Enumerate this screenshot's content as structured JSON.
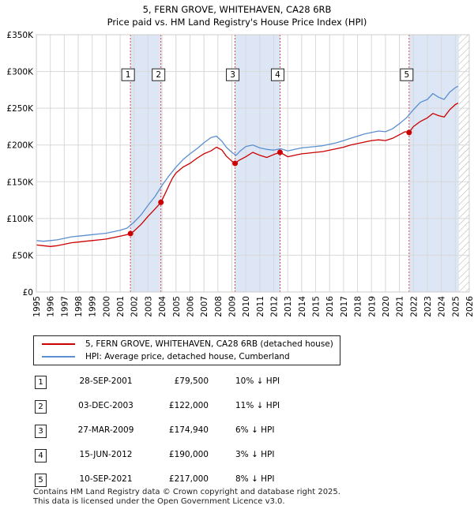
{
  "chart_data": {
    "type": "line",
    "title": "5, FERN GROVE, WHITEHAVEN, CA28 6RB",
    "subtitle": "Price paid vs. HM Land Registry's House Price Index (HPI)",
    "xlim": [
      1995,
      2026
    ],
    "ylim": [
      0,
      350000
    ],
    "x_ticks": [
      "1995",
      "1996",
      "1997",
      "1998",
      "1999",
      "2000",
      "2001",
      "2002",
      "2003",
      "2004",
      "2005",
      "2006",
      "2007",
      "2008",
      "2009",
      "2010",
      "2011",
      "2012",
      "2013",
      "2014",
      "2015",
      "2016",
      "2017",
      "2018",
      "2019",
      "2020",
      "2021",
      "2022",
      "2023",
      "2024",
      "2025",
      "2026"
    ],
    "y_ticks": [
      {
        "value": 0,
        "label": "£0"
      },
      {
        "value": 50000,
        "label": "£50K"
      },
      {
        "value": 100000,
        "label": "£100K"
      },
      {
        "value": 150000,
        "label": "£150K"
      },
      {
        "value": 200000,
        "label": "£200K"
      },
      {
        "value": 250000,
        "label": "£250K"
      },
      {
        "value": 300000,
        "label": "£300K"
      },
      {
        "value": 350000,
        "label": "£350K"
      }
    ],
    "grid": true,
    "colors": {
      "property": "#cc0000",
      "hpi": "#5b8fd0",
      "shade": "#dce6f5",
      "future_hatch": "#999999"
    },
    "shaded_ranges": [
      [
        2001.74,
        2003.92
      ],
      [
        2009.23,
        2012.45
      ],
      [
        2021.69,
        2025.25
      ]
    ],
    "future_start": 2025.25,
    "series": [
      {
        "name": "5, FERN GROVE, WHITEHAVEN, CA28 6RB (detached house)",
        "color": "#cc0000",
        "x": [
          1995.0,
          1995.5,
          1996.0,
          1996.5,
          1997.0,
          1997.5,
          1998.0,
          1998.5,
          1999.0,
          1999.5,
          2000.0,
          2000.5,
          2001.0,
          2001.5,
          2001.74,
          2002.0,
          2002.5,
          2003.0,
          2003.5,
          2003.92,
          2004.25,
          2004.5,
          2004.75,
          2005.0,
          2005.5,
          2006.0,
          2006.5,
          2007.0,
          2007.5,
          2007.9,
          2008.3,
          2008.6,
          2009.0,
          2009.23,
          2009.5,
          2010.0,
          2010.5,
          2011.0,
          2011.5,
          2012.0,
          2012.45,
          2013.0,
          2013.5,
          2014.0,
          2014.5,
          2015.0,
          2015.5,
          2016.0,
          2016.5,
          2017.0,
          2017.5,
          2018.0,
          2018.5,
          2019.0,
          2019.5,
          2020.0,
          2020.5,
          2021.0,
          2021.4,
          2021.69,
          2022.0,
          2022.5,
          2023.0,
          2023.4,
          2023.8,
          2024.2,
          2024.6,
          2025.0,
          2025.2
        ],
        "y": [
          64000,
          63000,
          62000,
          63000,
          65000,
          67000,
          68000,
          69000,
          70000,
          71000,
          72000,
          74000,
          76000,
          78000,
          79500,
          83000,
          92000,
          103000,
          113000,
          122000,
          135000,
          145000,
          155000,
          162000,
          170000,
          175000,
          182000,
          188000,
          192000,
          197000,
          193000,
          185000,
          178000,
          174940,
          179000,
          184000,
          190000,
          186000,
          183000,
          187000,
          190000,
          184000,
          186000,
          188000,
          189000,
          190000,
          191000,
          193000,
          195000,
          197000,
          200000,
          202000,
          204000,
          206000,
          207000,
          206000,
          209000,
          214000,
          218000,
          217000,
          225000,
          232000,
          237000,
          243000,
          240000,
          238000,
          248000,
          255000,
          257000
        ]
      },
      {
        "name": "HPI: Average price, detached house, Cumberland",
        "color": "#5b8fd0",
        "x": [
          1995.0,
          1995.5,
          1996.0,
          1996.5,
          1997.0,
          1997.5,
          1998.0,
          1998.5,
          1999.0,
          1999.5,
          2000.0,
          2000.5,
          2001.0,
          2001.5,
          2002.0,
          2002.5,
          2003.0,
          2003.5,
          2004.0,
          2004.5,
          2005.0,
          2005.5,
          2006.0,
          2006.5,
          2007.0,
          2007.5,
          2007.9,
          2008.3,
          2008.6,
          2009.0,
          2009.3,
          2009.6,
          2010.0,
          2010.5,
          2011.0,
          2011.5,
          2012.0,
          2012.5,
          2013.0,
          2013.5,
          2014.0,
          2014.5,
          2015.0,
          2015.5,
          2016.0,
          2016.5,
          2017.0,
          2017.5,
          2018.0,
          2018.5,
          2019.0,
          2019.5,
          2020.0,
          2020.5,
          2021.0,
          2021.5,
          2022.0,
          2022.5,
          2023.0,
          2023.4,
          2023.8,
          2024.2,
          2024.6,
          2025.0,
          2025.2
        ],
        "y": [
          70000,
          69000,
          70000,
          71000,
          73000,
          75000,
          76000,
          77000,
          78000,
          79000,
          80000,
          82000,
          84000,
          87000,
          95000,
          105000,
          118000,
          130000,
          145000,
          158000,
          170000,
          180000,
          188000,
          195000,
          203000,
          210000,
          212000,
          205000,
          197000,
          190000,
          186000,
          192000,
          198000,
          200000,
          196000,
          194000,
          193000,
          195000,
          192000,
          194000,
          196000,
          197000,
          198000,
          199000,
          201000,
          203000,
          206000,
          209000,
          212000,
          215000,
          217000,
          219000,
          218000,
          222000,
          229000,
          237000,
          248000,
          258000,
          262000,
          270000,
          265000,
          262000,
          272000,
          278000,
          280000
        ]
      }
    ],
    "markers": [
      {
        "label": "1",
        "x": 2001.74,
        "y": 79500
      },
      {
        "label": "2",
        "x": 2003.92,
        "y": 122000
      },
      {
        "label": "3",
        "x": 2009.23,
        "y": 174940
      },
      {
        "label": "4",
        "x": 2012.45,
        "y": 190000
      },
      {
        "label": "5",
        "x": 2021.69,
        "y": 217000
      }
    ],
    "marker_box_value": 295000
  },
  "legend": {
    "property_label": "5, FERN GROVE, WHITEHAVEN, CA28 6RB (detached house)",
    "hpi_label": "HPI: Average price, detached house, Cumberland"
  },
  "transactions": [
    {
      "num": "1",
      "date": "28-SEP-2001",
      "price": "£79,500",
      "hpi": "10% ↓ HPI"
    },
    {
      "num": "2",
      "date": "03-DEC-2003",
      "price": "£122,000",
      "hpi": "11% ↓ HPI"
    },
    {
      "num": "3",
      "date": "27-MAR-2009",
      "price": "£174,940",
      "hpi": "6% ↓ HPI"
    },
    {
      "num": "4",
      "date": "15-JUN-2012",
      "price": "£190,000",
      "hpi": "3% ↓ HPI"
    },
    {
      "num": "5",
      "date": "10-SEP-2021",
      "price": "£217,000",
      "hpi": "8% ↓ HPI"
    }
  ],
  "footer": {
    "line1": "Contains HM Land Registry data © Crown copyright and database right 2025.",
    "line2": "This data is licensed under the Open Government Licence v3.0."
  }
}
